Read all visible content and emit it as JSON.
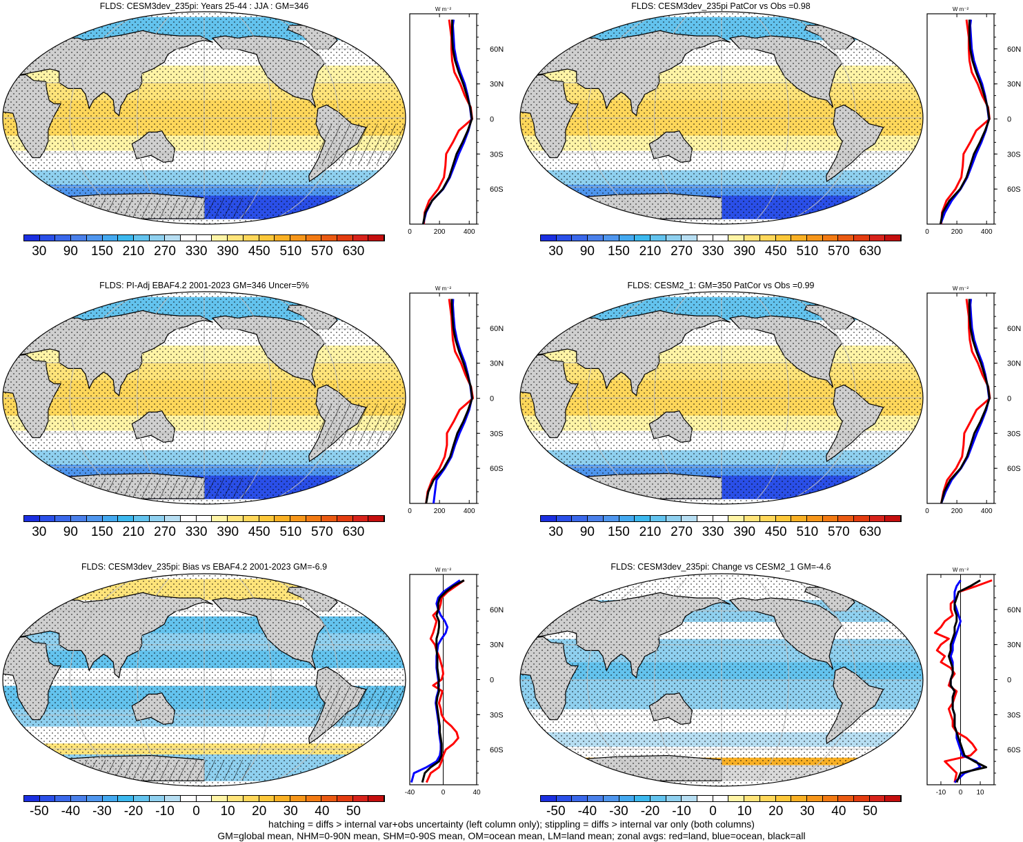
{
  "colorbars": {
    "abs": {
      "labels": [
        "30",
        "90",
        "150",
        "210",
        "270",
        "330",
        "390",
        "450",
        "510",
        "570",
        "630"
      ],
      "colors": [
        "#1b2fe0",
        "#2a4fe8",
        "#3a68ea",
        "#4a80ea",
        "#4f96ee",
        "#44a9f0",
        "#3cb8ee",
        "#63c3ee",
        "#8fd0ef",
        "#b7def2",
        "#ffffff",
        "#ffffff",
        "#fff4a6",
        "#ffe47a",
        "#ffd75a",
        "#fcc73a",
        "#f9b024",
        "#f6961a",
        "#f27a13",
        "#ea5a12",
        "#e33c10",
        "#d7231b",
        "#c40e0e"
      ]
    },
    "diff": {
      "labels": [
        "-50",
        "-40",
        "-30",
        "-20",
        "-10",
        "0",
        "10",
        "20",
        "30",
        "40",
        "50"
      ],
      "colors": [
        "#1b2fe0",
        "#2a4fe8",
        "#3a68ea",
        "#4a80ea",
        "#4f96ee",
        "#44a9f0",
        "#3cb8ee",
        "#63c3ee",
        "#8fd0ef",
        "#b7def2",
        "#ffffff",
        "#ffffff",
        "#fff4a6",
        "#ffe47a",
        "#ffd75a",
        "#fcc73a",
        "#f9b024",
        "#f6961a",
        "#f27a13",
        "#ea5a12",
        "#e33c10",
        "#d7231b",
        "#c40e0e"
      ]
    }
  },
  "panels": [
    {
      "title": "FLDS: CESM3dev_235pi: Years 25-44 : JJA : GM=346",
      "kind": "abs"
    },
    {
      "title": "FLDS: CESM3dev_235pi PatCor vs Obs =0.98",
      "kind": "abs"
    },
    {
      "title": "FLDS: PI-Adj EBAF4.2 2001-2023 GM=346 Uncer=5%",
      "kind": "abs"
    },
    {
      "title": "FLDS: CESM2_1: GM=350 PatCor vs Obs =0.99",
      "kind": "abs"
    },
    {
      "title": "FLDS: CESM3dev_235pi: Bias vs EBAF4.2 2001-2023 GM=-6.9",
      "kind": "bias"
    },
    {
      "title": "FLDS: CESM3dev_235pi: Change vs CESM2_1 GM=-4.6",
      "kind": "change"
    }
  ],
  "zonal_units": "W m⁻²",
  "lat_labels": [
    "60N",
    "30N",
    "0",
    "30S",
    "60S"
  ],
  "footer": {
    "line1": "hatching = diffs > internal var+obs uncertainty (left column only); stippling = diffs > internal var only (both columns)",
    "line2": "GM=global mean, NHM=0-90N mean, SHM=0-90S mean, OM=ocean mean, LM=land mean; zonal avgs: red=land, blue=ocean, black=all"
  },
  "chart_data": [
    {
      "type": "line",
      "title": "FLDS: CESM3dev_235pi: Years 25-44 : JJA : GM=346",
      "xlabel": "W m-2",
      "x_ticks": [
        "0",
        "200",
        "400"
      ],
      "xlim": [
        0,
        450
      ],
      "ylim": [
        -90,
        90
      ],
      "y_ticks": [
        "60N",
        "30N",
        "0",
        "30S",
        "60S"
      ],
      "lat": [
        -90,
        -80,
        -70,
        -60,
        -50,
        -40,
        -30,
        -20,
        -10,
        0,
        10,
        20,
        30,
        40,
        50,
        60,
        70,
        80,
        85
      ],
      "series": [
        {
          "name": "land",
          "color": "#ff0000",
          "values": [
            95,
            100,
            130,
            190,
            230,
            240,
            245,
            290,
            330,
            420,
            410,
            370,
            340,
            300,
            285,
            280,
            280,
            270,
            265
          ]
        },
        {
          "name": "ocean",
          "color": "#0000ff",
          "values": [
            90,
            110,
            150,
            225,
            270,
            300,
            330,
            365,
            395,
            415,
            405,
            390,
            370,
            340,
            315,
            300,
            295,
            290,
            295
          ]
        },
        {
          "name": "all",
          "color": "#000000",
          "values": [
            90,
            105,
            150,
            222,
            265,
            290,
            315,
            355,
            390,
            418,
            407,
            385,
            360,
            330,
            305,
            290,
            285,
            285,
            285
          ]
        }
      ]
    },
    {
      "type": "line",
      "title": "FLDS: CESM3dev_235pi PatCor vs Obs =0.98",
      "xlabel": "W m-2",
      "x_ticks": [
        "0",
        "200",
        "400"
      ],
      "xlim": [
        0,
        450
      ],
      "ylim": [
        -90,
        90
      ],
      "y_ticks": [
        "60N",
        "30N",
        "0",
        "30S",
        "60S"
      ],
      "lat": [
        -90,
        -80,
        -70,
        -60,
        -50,
        -40,
        -30,
        -20,
        -10,
        0,
        10,
        20,
        30,
        40,
        50,
        60,
        70,
        80,
        85
      ],
      "series": [
        {
          "name": "land",
          "color": "#ff0000",
          "values": [
            95,
            100,
            130,
            190,
            230,
            240,
            245,
            290,
            330,
            420,
            410,
            370,
            340,
            300,
            285,
            280,
            280,
            270,
            265
          ]
        },
        {
          "name": "ocean",
          "color": "#0000ff",
          "values": [
            90,
            120,
            165,
            225,
            270,
            300,
            330,
            365,
            395,
            415,
            405,
            390,
            370,
            340,
            315,
            300,
            295,
            290,
            295
          ]
        },
        {
          "name": "all",
          "color": "#000000",
          "values": [
            90,
            105,
            150,
            222,
            265,
            290,
            315,
            355,
            390,
            418,
            407,
            385,
            360,
            330,
            305,
            290,
            285,
            285,
            285
          ]
        }
      ]
    },
    {
      "type": "line",
      "title": "FLDS: PI-Adj EBAF4.2 2001-2023 GM=346 Uncer=5%",
      "xlabel": "W m-2",
      "x_ticks": [
        "0",
        "200",
        "400"
      ],
      "xlim": [
        0,
        450
      ],
      "ylim": [
        -90,
        90
      ],
      "y_ticks": [
        "60N",
        "30N",
        "0",
        "30S",
        "60S"
      ],
      "lat": [
        -90,
        -80,
        -70,
        -60,
        -50,
        -40,
        -30,
        -20,
        -10,
        0,
        10,
        20,
        30,
        40,
        50,
        60,
        70,
        80,
        85
      ],
      "series": [
        {
          "name": "land",
          "color": "#ff0000",
          "values": [
            110,
            120,
            150,
            200,
            235,
            250,
            250,
            295,
            335,
            425,
            412,
            375,
            345,
            305,
            290,
            285,
            280,
            270,
            265
          ]
        },
        {
          "name": "ocean",
          "color": "#0000ff",
          "values": [
            160,
            170,
            180,
            235,
            280,
            305,
            335,
            370,
            400,
            418,
            408,
            392,
            372,
            342,
            318,
            302,
            295,
            290,
            292
          ]
        },
        {
          "name": "all",
          "color": "#000000",
          "values": [
            110,
            125,
            160,
            228,
            272,
            295,
            320,
            360,
            393,
            420,
            410,
            388,
            362,
            332,
            308,
            293,
            287,
            283,
            282
          ]
        }
      ]
    },
    {
      "type": "line",
      "title": "FLDS: CESM2_1: GM=350 PatCor vs Obs =0.99",
      "xlabel": "W m-2",
      "x_ticks": [
        "0",
        "200",
        "400"
      ],
      "xlim": [
        0,
        450
      ],
      "ylim": [
        -90,
        90
      ],
      "y_ticks": [
        "60N",
        "30N",
        "0",
        "30S",
        "60S"
      ],
      "lat": [
        -90,
        -80,
        -70,
        -60,
        -50,
        -40,
        -30,
        -20,
        -10,
        0,
        10,
        20,
        30,
        40,
        50,
        60,
        70,
        80,
        85
      ],
      "series": [
        {
          "name": "land",
          "color": "#ff0000",
          "values": [
            95,
            110,
            135,
            195,
            235,
            245,
            250,
            292,
            332,
            422,
            411,
            372,
            342,
            302,
            287,
            281,
            280,
            270,
            265
          ]
        },
        {
          "name": "ocean",
          "color": "#0000ff",
          "values": [
            95,
            125,
            165,
            228,
            274,
            304,
            334,
            368,
            398,
            417,
            407,
            392,
            372,
            342,
            317,
            302,
            296,
            291,
            295
          ]
        },
        {
          "name": "all",
          "color": "#000000",
          "values": [
            95,
            115,
            155,
            225,
            268,
            293,
            318,
            358,
            392,
            420,
            409,
            387,
            362,
            332,
            307,
            292,
            286,
            284,
            284
          ]
        }
      ]
    },
    {
      "type": "line",
      "title": "FLDS: CESM3dev_235pi: Bias vs EBAF4.2 2001-2023 GM=-6.9",
      "xlabel": "W m-2",
      "x_ticks": [
        "-40",
        "0",
        "40"
      ],
      "xlim": [
        -40,
        40
      ],
      "ylim": [
        -90,
        90
      ],
      "y_ticks": [
        "60N",
        "30N",
        "0",
        "30S",
        "60S"
      ],
      "lat": [
        -88,
        -80,
        -75,
        -70,
        -65,
        -60,
        -55,
        -50,
        -45,
        -40,
        -35,
        -30,
        -25,
        -20,
        -15,
        -10,
        -5,
        0,
        5,
        10,
        15,
        20,
        25,
        30,
        35,
        40,
        45,
        50,
        55,
        60,
        65,
        70,
        75,
        80,
        85
      ],
      "series": [
        {
          "name": "land",
          "color": "#ff0000",
          "values": [
            -20,
            -15,
            -5,
            -2,
            0,
            3,
            12,
            18,
            16,
            10,
            2,
            -2,
            -3,
            -5,
            -3,
            -1,
            -12,
            -2,
            0,
            -1,
            -3,
            -5,
            -8,
            -10,
            -15,
            -12,
            -10,
            -8,
            -12,
            -5,
            -3,
            -2,
            5,
            15,
            25
          ]
        },
        {
          "name": "ocean",
          "color": "#0000ff",
          "values": [
            -38,
            -35,
            -20,
            -8,
            -4,
            -3,
            -3,
            -4,
            -5,
            -5,
            -6,
            -7,
            -8,
            -9,
            -8,
            -6,
            -5,
            -6,
            -7,
            -8,
            -8,
            -8,
            -7,
            -6,
            -2,
            3,
            5,
            2,
            -3,
            -6,
            -8,
            -6,
            0,
            10,
            20
          ]
        },
        {
          "name": "all",
          "color": "#000000",
          "values": [
            -25,
            -22,
            -15,
            -5,
            -2,
            -2,
            -2,
            -3,
            -4,
            -4,
            -5,
            -6,
            -7,
            -8,
            -7,
            -5,
            -6,
            -5,
            -6,
            -7,
            -7,
            -7,
            -8,
            -8,
            -8,
            -6,
            -5,
            -5,
            -8,
            -6,
            -6,
            -4,
            3,
            12,
            25
          ]
        }
      ]
    },
    {
      "type": "line",
      "title": "FLDS: CESM3dev_235pi: Change vs CESM2_1 GM=-4.6",
      "xlabel": "W m-2",
      "x_ticks": [
        "-10",
        "0",
        "10"
      ],
      "xlim": [
        -17,
        17
      ],
      "ylim": [
        -90,
        90
      ],
      "y_ticks": [
        "60N",
        "30N",
        "0",
        "30S",
        "60S"
      ],
      "lat": [
        -88,
        -80,
        -75,
        -70,
        -65,
        -60,
        -55,
        -50,
        -45,
        -40,
        -35,
        -30,
        -25,
        -20,
        -15,
        -10,
        -5,
        0,
        5,
        10,
        15,
        20,
        25,
        30,
        35,
        40,
        45,
        50,
        55,
        60,
        65,
        70,
        75,
        80,
        85
      ],
      "series": [
        {
          "name": "land",
          "color": "#ff0000",
          "values": [
            -3,
            -2,
            -5,
            -8,
            5,
            8,
            6,
            3,
            -2,
            -4,
            -4,
            -5,
            -6,
            -4,
            -3,
            -2,
            -6,
            -5,
            -3,
            -5,
            -10,
            -8,
            -12,
            -10,
            -6,
            -13,
            -10,
            -8,
            -4,
            -5,
            -5,
            -2,
            -1,
            8,
            16
          ]
        },
        {
          "name": "ocean",
          "color": "#0000ff",
          "values": [
            -3,
            2,
            10,
            8,
            1,
            0,
            -1,
            -2,
            -2,
            -3,
            -3,
            -3,
            -4,
            -4,
            -4,
            -3,
            -5,
            -5,
            -4,
            -4,
            -4,
            -5,
            -4,
            -4,
            -3,
            -2,
            -1,
            0,
            -1,
            -2,
            -3,
            -3,
            -3,
            -2,
            0
          ]
        },
        {
          "name": "all",
          "color": "#000000",
          "values": [
            -2,
            0,
            13,
            7,
            2,
            1,
            0,
            -1,
            -2,
            -3,
            -3,
            -3,
            -4,
            -4,
            -4,
            -3,
            -5,
            -5,
            -4,
            -4,
            -5,
            -6,
            -5,
            -5,
            -4,
            -3,
            -3,
            -2,
            -2,
            -3,
            -3,
            -2,
            -1,
            5,
            10
          ]
        }
      ]
    }
  ]
}
